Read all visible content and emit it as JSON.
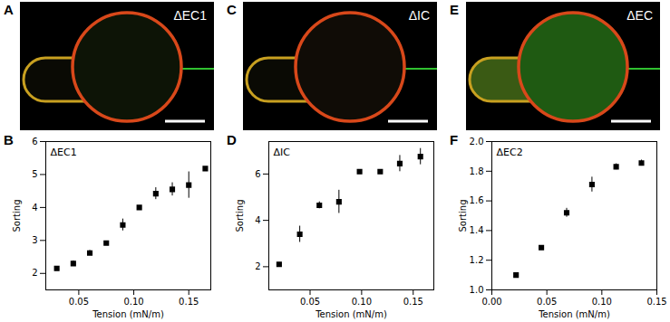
{
  "images": [
    {
      "panel": "A",
      "label": "ΔEC1"
    },
    {
      "panel": "C",
      "label": "ΔIC"
    },
    {
      "panel": "E",
      "label": "ΔEC"
    }
  ],
  "chart_data": [
    {
      "type": "scatter",
      "panel": "B",
      "title": "ΔEC1",
      "x_label": "Tension (mN/m)",
      "y_label": "Sorting",
      "x": [
        0.03,
        0.045,
        0.06,
        0.075,
        0.09,
        0.105,
        0.12,
        0.135,
        0.15,
        0.165
      ],
      "values": [
        2.15,
        2.3,
        2.62,
        2.92,
        3.47,
        4.0,
        4.42,
        4.55,
        4.68,
        5.18
      ],
      "errors": [
        0.03,
        0.08,
        0.08,
        0.05,
        0.18,
        0.05,
        0.18,
        0.2,
        0.4,
        0.05
      ],
      "xlim": [
        0.02,
        0.17
      ],
      "xticks": [
        0.05,
        {
          "value": 0.1,
          "label": "0.10"
        },
        0.15
      ],
      "ylim": [
        1.5,
        6
      ],
      "yticks": [
        2,
        3,
        4,
        5,
        6
      ],
      "color": "#000000",
      "marker": "square"
    },
    {
      "type": "scatter",
      "panel": "D",
      "title": "ΔIC",
      "x_label": "Tension (mN/m)",
      "y_label": "Sorting",
      "x": [
        0.02,
        0.04,
        0.059,
        0.078,
        0.098,
        0.118,
        0.137,
        0.157
      ],
      "values": [
        2.1,
        3.4,
        4.65,
        4.8,
        6.1,
        6.1,
        6.45,
        6.75
      ],
      "errors": [
        0.08,
        0.35,
        0.15,
        0.5,
        0.07,
        0.03,
        0.35,
        0.35
      ],
      "xlim": [
        0.01,
        0.17
      ],
      "xticks": [
        0.05,
        {
          "value": 0.1,
          "label": "0.10"
        },
        0.15
      ],
      "ylim": [
        1,
        7.4
      ],
      "yticks": [
        2,
        4,
        6
      ],
      "color": "#000000",
      "marker": "square"
    },
    {
      "type": "scatter",
      "panel": "F",
      "title": "ΔEC2",
      "x_label": "Tension (mN/m)",
      "y_label": "Sorting",
      "x": [
        0.022,
        0.045,
        0.068,
        0.091,
        0.113,
        0.136
      ],
      "values": [
        1.1,
        1.285,
        1.52,
        1.71,
        1.83,
        1.855
      ],
      "errors": [
        0.01,
        0.01,
        0.03,
        0.05,
        0.02,
        0.02
      ],
      "xlim": [
        0,
        0.15
      ],
      "xticks": [
        {
          "value": 0,
          "label": "0.00"
        },
        0.05,
        {
          "value": 0.1,
          "label": "0.10"
        },
        0.15
      ],
      "ylim": [
        1.0,
        2.0
      ],
      "yticks": [
        {
          "value": 1,
          "label": "1.0"
        },
        {
          "value": 1.2,
          "label": "1.2"
        },
        {
          "value": 1.4,
          "label": "1.4"
        },
        {
          "value": 1.6,
          "label": "1.6"
        },
        {
          "value": 1.8,
          "label": "1.8"
        },
        {
          "value": 2,
          "label": "2.0"
        }
      ],
      "color": "#000000",
      "marker": "square"
    }
  ]
}
